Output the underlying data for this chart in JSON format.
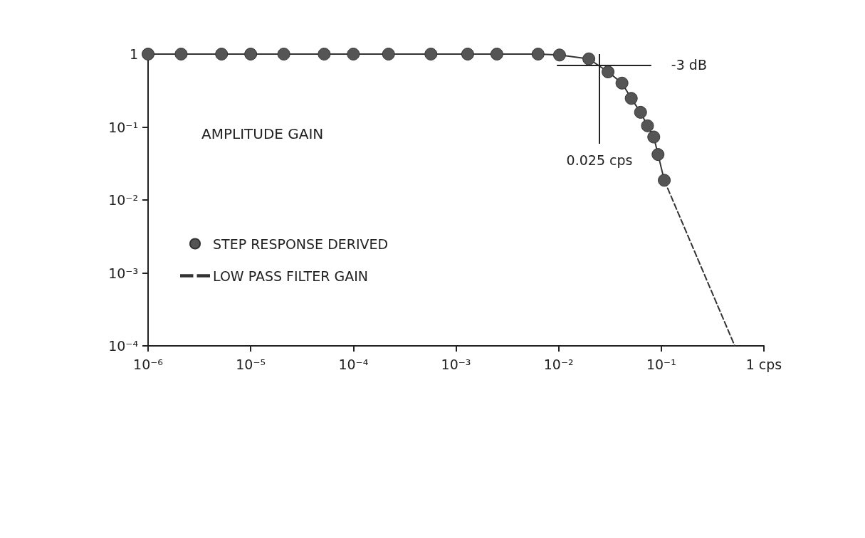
{
  "chart_data": {
    "type": "line",
    "title": "AMPLITUDE GAIN",
    "series": [
      {
        "name": "STEP RESPONSE DERIVED",
        "marker": "circle",
        "line_style": "solid",
        "color": "#555555",
        "x": [
          1e-06,
          2.1e-06,
          5.2e-06,
          1e-05,
          2.1e-05,
          5.2e-05,
          0.0001,
          0.00022,
          0.00057,
          0.0013,
          0.0025,
          0.0063,
          0.0102,
          0.0197,
          0.0303,
          0.0414,
          0.051,
          0.0628,
          0.0734,
          0.0845,
          0.093,
          0.107
        ],
        "values": [
          1,
          1,
          1,
          1,
          1,
          1,
          1,
          1,
          1,
          1,
          1,
          1,
          0.97,
          0.86,
          0.57,
          0.4,
          0.247,
          0.159,
          0.104,
          0.073,
          0.042,
          0.0186
        ]
      },
      {
        "name": "LOW PASS FILTER GAIN",
        "marker": "none",
        "line_style": "dashed",
        "color": "#333333",
        "x": [
          0.107,
          0.52
        ],
        "values": [
          0.0186,
          0.0001
        ]
      }
    ],
    "log": "xy",
    "xlim": [
      1e-06,
      1
    ],
    "ylim": [
      0.0001,
      1
    ],
    "xticks": [
      {
        "value": 1e-06,
        "label": "10⁻⁶"
      },
      {
        "value": 1e-05,
        "label": "10⁻⁵"
      },
      {
        "value": 0.0001,
        "label": "10⁻⁴"
      },
      {
        "value": 0.001,
        "label": "10⁻³"
      },
      {
        "value": 0.01,
        "label": "10⁻²"
      },
      {
        "value": 0.1,
        "label": "10⁻¹"
      },
      {
        "value": 1,
        "label": "1 cps"
      }
    ],
    "yticks": [
      {
        "value": 0.0001,
        "label": "10⁻⁴"
      },
      {
        "value": 0.001,
        "label": "10⁻³"
      },
      {
        "value": 0.01,
        "label": "10⁻²"
      },
      {
        "value": 0.1,
        "label": "10⁻¹"
      },
      1
    ],
    "ref_lines": [
      {
        "axis": "y",
        "value": 0.708,
        "label": "-3 dB"
      },
      {
        "axis": "x",
        "value": 0.025,
        "label": "0.025 cps"
      }
    ],
    "grid": false,
    "legend": "left"
  }
}
